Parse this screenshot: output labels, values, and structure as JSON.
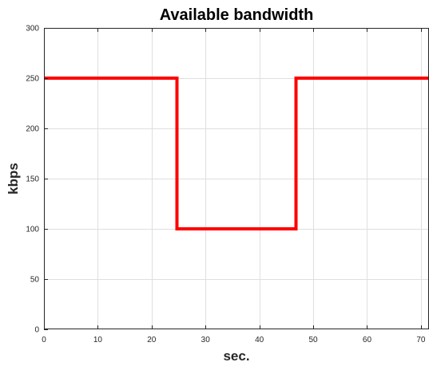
{
  "chart_data": {
    "type": "line",
    "title": "Available bandwidth",
    "xlabel": "sec.",
    "ylabel": "kbps",
    "xlim": [
      0,
      71.5
    ],
    "ylim": [
      0,
      300
    ],
    "xticks": [
      0,
      10,
      20,
      30,
      40,
      50,
      60,
      70
    ],
    "yticks": [
      0,
      50,
      100,
      150,
      200,
      250,
      300
    ],
    "grid": true,
    "series": [
      {
        "color": "#ff0000",
        "x": [
          0,
          24.7,
          24.7,
          46.8,
          46.8,
          71.5
        ],
        "y": [
          250,
          250,
          100,
          100,
          250,
          250
        ]
      }
    ]
  }
}
